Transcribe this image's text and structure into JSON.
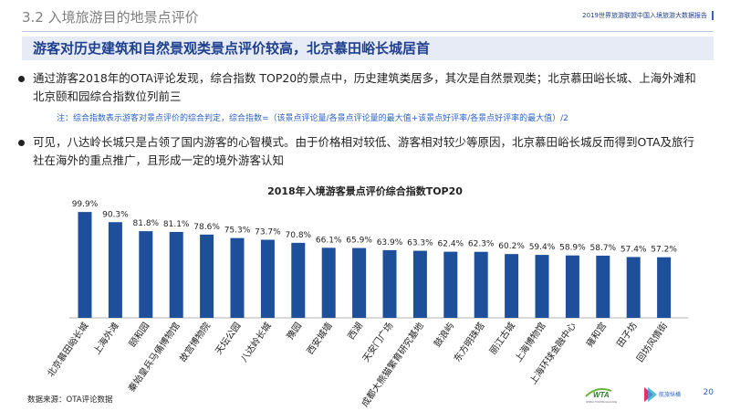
{
  "header": {
    "section_title": "3.2 入境旅游目的地景点评价",
    "report_name": "2019世界旅游联盟中国入境旅游大数据报告"
  },
  "banner": "游客对历史建筑和自然景观类景点评价较高，北京慕田峪长城居首",
  "bullets": [
    "通过游客2018年的OTA评论发现，综合指数 TOP20的景点中，历史建筑类居多，其次是自然景观类；北京慕田峪长城、上海外滩和北京颐和园综合指数位列前三",
    "可见，八达岭长城只是占领了国内游客的心智模式。由于价格相对较低、游客相对较少等原因，北京慕田峪长城反而得到OTA及旅行社在海外的重点推广，且形成一定的境外游客认知"
  ],
  "note": "注：综合指数表示游客对景点评价的综合判定，综合指数=（该景点评论量/各景点评论量的最大值+该景点好评率/各景点好评率的最大值）/2",
  "source": "数据来源：OTA评论数据",
  "page_number": "20",
  "logos": {
    "wta_text": "WTA",
    "wta_sub": "WORLD TOURISM ALLIANCE",
    "partner_text": "航旅纵横"
  },
  "colors": {
    "bar": "#1d4f9b",
    "accent": "#2a63c6",
    "banner_bg": "#e6ebf6"
  },
  "chart_data": {
    "type": "bar",
    "title": "2018年入境游客景点评价综合指数TOP20",
    "categories": [
      "北京慕田峪长城",
      "上海外滩",
      "颐和园",
      "秦始皇兵马俑博物馆",
      "故宫博物院",
      "天坛公园",
      "八达岭长城",
      "豫园",
      "西安城墙",
      "西湖",
      "天安门广场",
      "成都大熊猫繁育研究基地",
      "鼓浪屿",
      "东方明珠塔",
      "丽江古城",
      "上海博物馆",
      "上海环球金融中心",
      "雍和宫",
      "田子坊",
      "回坊风情街"
    ],
    "values": [
      99.9,
      90.3,
      81.8,
      81.1,
      78.6,
      75.3,
      73.7,
      70.8,
      66.1,
      65.9,
      63.9,
      63.3,
      62.4,
      62.3,
      60.2,
      59.4,
      58.9,
      58.7,
      57.4,
      57.2
    ],
    "value_labels": [
      "99.9%",
      "90.3%",
      "81.8%",
      "81.1%",
      "78.6%",
      "75.3%",
      "73.7%",
      "70.8%",
      "66.1%",
      "65.9%",
      "63.9%",
      "63.3%",
      "62.4%",
      "62.3%",
      "60.2%",
      "59.4%",
      "58.9%",
      "58.7%",
      "57.4%",
      "57.2%"
    ],
    "ylim": [
      0,
      100
    ],
    "grid": false,
    "legend": "none"
  }
}
